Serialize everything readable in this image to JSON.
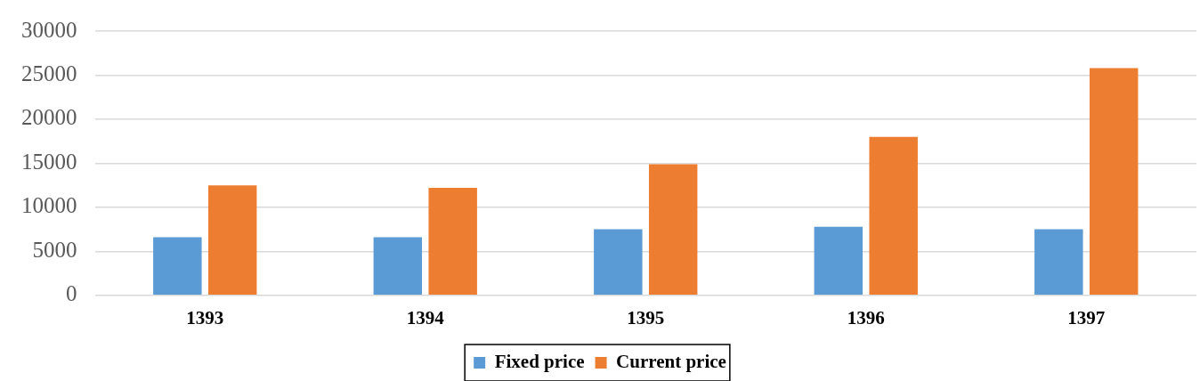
{
  "chart_data": {
    "type": "bar",
    "categories": [
      "1393",
      "1394",
      "1395",
      "1396",
      "1397"
    ],
    "series": [
      {
        "name": "Fixed price",
        "color": "#5b9bd5",
        "values": [
          6600,
          6600,
          7500,
          7800,
          7500
        ]
      },
      {
        "name": "Current price",
        "color": "#ed7d31",
        "values": [
          12500,
          12200,
          14900,
          18000,
          25800
        ]
      }
    ],
    "ylim": [
      0,
      30000
    ],
    "yticks": [
      0,
      5000,
      10000,
      15000,
      20000,
      25000,
      30000
    ],
    "grid": "y",
    "legend": "bottom"
  }
}
